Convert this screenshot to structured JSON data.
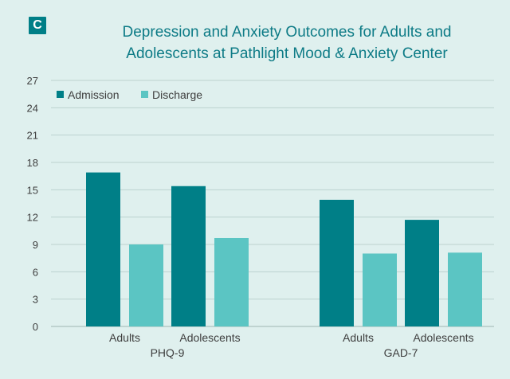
{
  "logo": {
    "letter": "C"
  },
  "colors": {
    "background": "#dff0ee",
    "admission": "#007f87",
    "discharge": "#5bc5c3",
    "grid": "#bcd2cf",
    "title": "#0d7b86",
    "text": "#3e3e3e"
  },
  "chart_data": {
    "type": "bar",
    "title": [
      "Depression and Anxiety Outcomes for Adults and",
      "Adolescents at Pathlight Mood & Anxiety Center"
    ],
    "groups": [
      "PHQ-9",
      "GAD-7"
    ],
    "categories": [
      "Adults",
      "Adolescents"
    ],
    "series": [
      {
        "name": "Admission",
        "values": [
          [
            16.9,
            15.4
          ],
          [
            13.9,
            11.7
          ]
        ]
      },
      {
        "name": "Discharge",
        "values": [
          [
            9.0,
            9.7
          ],
          [
            8.0,
            8.1
          ]
        ]
      }
    ],
    "ylim": [
      0,
      27
    ],
    "yticks": [
      0,
      3,
      6,
      9,
      12,
      15,
      18,
      21,
      24,
      27
    ],
    "grid": true,
    "legend": "top-left",
    "xlabel": "",
    "ylabel": ""
  }
}
